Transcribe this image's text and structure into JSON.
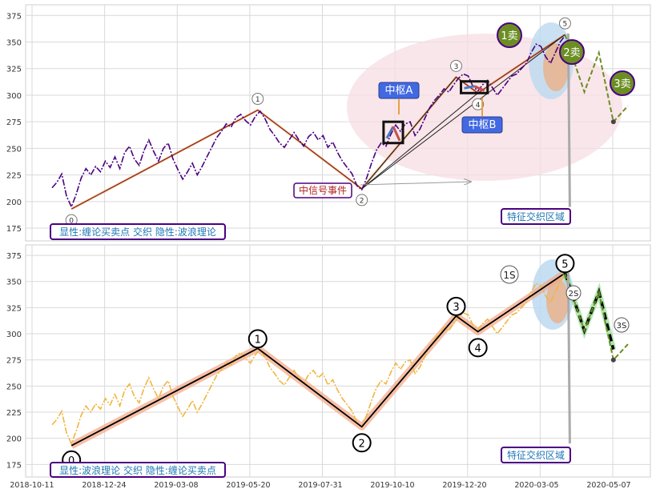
{
  "chart_data": [
    {
      "type": "line",
      "panel": "top",
      "ylim": [
        163,
        385
      ],
      "yticks": [
        175,
        200,
        225,
        250,
        275,
        300,
        325,
        350,
        375
      ],
      "grid": true,
      "colors": {
        "price": "#4b0082",
        "wave": "#8b1a1a",
        "box": "#1a1a1a",
        "ellipse": "#f7dde3",
        "label_box": "#4169e1",
        "sell_circle": "#6b8e23"
      },
      "price_series": [
        [
          0,
          213
        ],
        [
          2,
          218
        ],
        [
          4,
          226
        ],
        [
          6,
          205
        ],
        [
          8,
          195
        ],
        [
          10,
          207
        ],
        [
          12,
          222
        ],
        [
          14,
          231
        ],
        [
          16,
          225
        ],
        [
          18,
          233
        ],
        [
          20,
          228
        ],
        [
          22,
          238
        ],
        [
          24,
          232
        ],
        [
          26,
          242
        ],
        [
          28,
          231
        ],
        [
          30,
          246
        ],
        [
          32,
          252
        ],
        [
          34,
          240
        ],
        [
          36,
          234
        ],
        [
          38,
          248
        ],
        [
          40,
          258
        ],
        [
          42,
          247
        ],
        [
          44,
          238
        ],
        [
          46,
          250
        ],
        [
          48,
          255
        ],
        [
          50,
          240
        ],
        [
          52,
          230
        ],
        [
          54,
          221
        ],
        [
          56,
          228
        ],
        [
          58,
          236
        ],
        [
          60,
          225
        ],
        [
          62,
          233
        ],
        [
          64,
          242
        ],
        [
          66,
          251
        ],
        [
          68,
          260
        ],
        [
          70,
          266
        ],
        [
          72,
          273
        ],
        [
          74,
          270
        ],
        [
          76,
          279
        ],
        [
          78,
          282
        ],
        [
          80,
          276
        ],
        [
          82,
          272
        ],
        [
          84,
          280
        ],
        [
          86,
          285
        ],
        [
          88,
          278
        ],
        [
          90,
          268
        ],
        [
          92,
          262
        ],
        [
          94,
          255
        ],
        [
          96,
          251
        ],
        [
          98,
          258
        ],
        [
          100,
          265
        ],
        [
          102,
          258
        ],
        [
          104,
          252
        ],
        [
          106,
          261
        ],
        [
          108,
          265
        ],
        [
          110,
          258
        ],
        [
          112,
          262
        ],
        [
          114,
          251
        ],
        [
          116,
          256
        ],
        [
          118,
          246
        ],
        [
          120,
          238
        ],
        [
          122,
          232
        ],
        [
          124,
          226
        ],
        [
          126,
          215
        ],
        [
          128,
          211
        ],
        [
          130,
          222
        ],
        [
          132,
          236
        ],
        [
          134,
          248
        ],
        [
          136,
          255
        ],
        [
          138,
          252
        ],
        [
          140,
          263
        ],
        [
          142,
          272
        ],
        [
          144,
          266
        ],
        [
          146,
          273
        ],
        [
          148,
          275
        ],
        [
          150,
          262
        ],
        [
          152,
          268
        ],
        [
          154,
          278
        ],
        [
          156,
          288
        ],
        [
          158,
          295
        ],
        [
          160,
          300
        ],
        [
          162,
          306
        ],
        [
          164,
          303
        ],
        [
          166,
          310
        ],
        [
          168,
          316
        ],
        [
          170,
          320
        ],
        [
          172,
          318
        ],
        [
          174,
          308
        ],
        [
          176,
          304
        ],
        [
          178,
          310
        ],
        [
          180,
          314
        ],
        [
          182,
          307
        ],
        [
          184,
          300
        ],
        [
          186,
          306
        ],
        [
          188,
          312
        ],
        [
          190,
          318
        ],
        [
          192,
          320
        ],
        [
          194,
          325
        ],
        [
          196,
          330
        ],
        [
          198,
          340
        ],
        [
          200,
          348
        ],
        [
          202,
          346
        ],
        [
          204,
          336
        ],
        [
          206,
          330
        ],
        [
          208,
          340
        ],
        [
          210,
          350
        ],
        [
          212,
          356
        ]
      ],
      "wave_points": [
        {
          "label": "0",
          "x": 8,
          "y": 193
        },
        {
          "label": "1",
          "x": 85,
          "y": 286
        },
        {
          "label": "2",
          "x": 128,
          "y": 212
        },
        {
          "label": "3",
          "x": 167,
          "y": 317
        },
        {
          "label": "4",
          "x": 176,
          "y": 302
        },
        {
          "label": "5",
          "x": 212,
          "y": 357
        }
      ],
      "pivots": [
        {
          "label": "中枢A",
          "x0": 137,
          "x1": 145,
          "ylow": 255,
          "yhigh": 275
        },
        {
          "label": "中枢B",
          "x0": 169,
          "x1": 180,
          "ylow": 302,
          "yhigh": 313
        }
      ],
      "sell_points": [
        "1卖",
        "2卖",
        "3卖"
      ],
      "event_label": "中信号事件",
      "zone_label": "特征交织区域",
      "caption": "显性:缠论买卖点 交织 隐性:波浪理论",
      "projection": [
        [
          212,
          357
        ],
        [
          220,
          303
        ],
        [
          226,
          340
        ],
        [
          232,
          275
        ],
        [
          238,
          290
        ]
      ]
    },
    {
      "type": "line",
      "panel": "bottom",
      "ylim": [
        163,
        385
      ],
      "yticks": [
        175,
        200,
        225,
        250,
        275,
        300,
        325,
        350,
        375
      ],
      "grid": true,
      "colors": {
        "price": "#f0b640",
        "wave": "#000000",
        "band": "#f4a582",
        "projection": "#6b8e23"
      },
      "wave_points": [
        {
          "label": "0",
          "x": 8,
          "y": 193
        },
        {
          "label": "1",
          "x": 85,
          "y": 286
        },
        {
          "label": "2",
          "x": 128,
          "y": 211
        },
        {
          "label": "3",
          "x": 167,
          "y": 317
        },
        {
          "label": "4",
          "x": 176,
          "y": 302
        },
        {
          "label": "5",
          "x": 212,
          "y": 358
        }
      ],
      "sell_points": [
        "1S",
        "2S",
        "3S"
      ],
      "zone_label": "特征交织区域",
      "caption": "显性:波浪理论 交织 隐性:缠论买卖点"
    }
  ],
  "x_axis": {
    "ticks": [
      "2018-10-11",
      "2018-12-24",
      "2019-03-08",
      "2019-05-20",
      "2019-07-31",
      "2019-10-10",
      "2019-12-20",
      "2020-03-05",
      "2020-05-07"
    ]
  }
}
